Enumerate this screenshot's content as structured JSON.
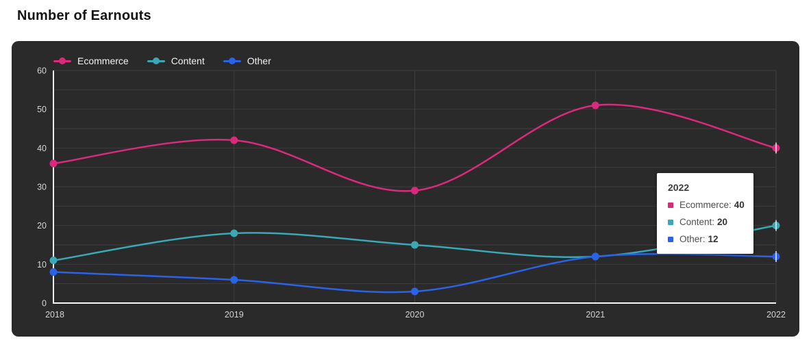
{
  "page_title": "Number of Earnouts",
  "colors": {
    "page_bg": "#ffffff",
    "panel_bg": "#2a2a2a",
    "grid": "#3d3d3d",
    "axis": "#f5f5f5",
    "tick_text": "#d4d4d4",
    "cursor_line": "#ffffff",
    "ecommerce": "#db2a7b",
    "content": "#3aa8b5",
    "other": "#2a63e8"
  },
  "chart_data": {
    "type": "line",
    "title": "Number of Earnouts",
    "x": [
      "2018",
      "2019",
      "2020",
      "2021",
      "2022"
    ],
    "series": [
      {
        "name": "Ecommerce",
        "color": "#db2a7b",
        "values": [
          36,
          42,
          29,
          51,
          40
        ]
      },
      {
        "name": "Content",
        "color": "#3aa8b5",
        "values": [
          11,
          18,
          15,
          12,
          20
        ]
      },
      {
        "name": "Other",
        "color": "#2a63e8",
        "values": [
          8,
          6,
          3,
          12,
          12
        ]
      }
    ],
    "xlabel": "",
    "ylabel": "",
    "ylim": [
      0,
      60
    ],
    "yticks": [
      0,
      10,
      20,
      30,
      40,
      50,
      60
    ],
    "minor_grid_step": 5,
    "grid": true,
    "legend_position": "top-left",
    "hovered_x": "2022"
  },
  "tooltip": {
    "title": "2022",
    "rows": [
      {
        "label": "Ecommerce",
        "value": "40",
        "color": "#db2a7b"
      },
      {
        "label": "Content",
        "value": "20",
        "color": "#3aa8b5"
      },
      {
        "label": "Other",
        "value": "12",
        "color": "#2a63e8"
      }
    ]
  }
}
